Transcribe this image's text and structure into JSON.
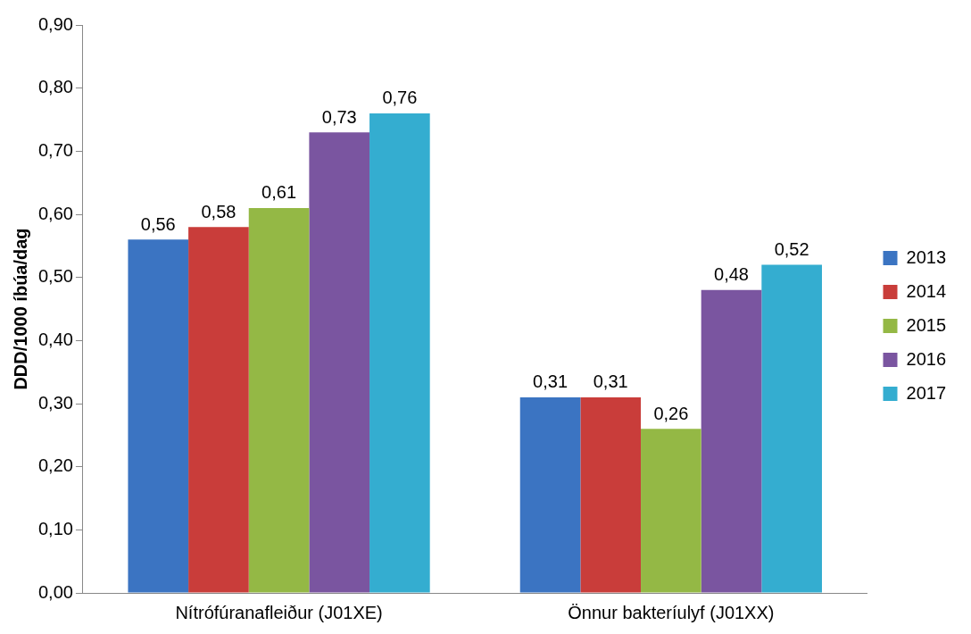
{
  "chart_data": {
    "type": "bar",
    "ylabel": "DDD/1000 íbúa/dag",
    "categories": [
      "Nítrófúranafleiður (J01XE)",
      "Önnur bakteríulyf (J01XX)"
    ],
    "series": [
      {
        "name": "2013",
        "color": "#3b74c2",
        "values": [
          0.56,
          0.31
        ],
        "value_labels": [
          "0,56",
          "0,31"
        ]
      },
      {
        "name": "2014",
        "color": "#c93d3a",
        "values": [
          0.58,
          0.31
        ],
        "value_labels": [
          "0,58",
          "0,31"
        ]
      },
      {
        "name": "2015",
        "color": "#94b845",
        "values": [
          0.61,
          0.26
        ],
        "value_labels": [
          "0,61",
          "0,26"
        ]
      },
      {
        "name": "2016",
        "color": "#7a55a0",
        "values": [
          0.73,
          0.48
        ],
        "value_labels": [
          "0,73",
          "0,48"
        ]
      },
      {
        "name": "2017",
        "color": "#34add0",
        "values": [
          0.76,
          0.52
        ],
        "value_labels": [
          "0,76",
          "0,52"
        ]
      }
    ],
    "ylim": [
      0,
      0.9
    ],
    "yticks": [
      {
        "value": 0,
        "label": "0,00"
      },
      {
        "value": 0.1,
        "label": "0,10"
      },
      {
        "value": 0.2,
        "label": "0,20"
      },
      {
        "value": 0.3,
        "label": "0,30"
      },
      {
        "value": 0.4,
        "label": "0,40"
      },
      {
        "value": 0.5,
        "label": "0,50"
      },
      {
        "value": 0.6,
        "label": "0,60"
      },
      {
        "value": 0.7,
        "label": "0,70"
      },
      {
        "value": 0.8,
        "label": "0,80"
      },
      {
        "value": 0.9,
        "label": "0,90"
      }
    ],
    "grid": false,
    "legend": "right"
  }
}
